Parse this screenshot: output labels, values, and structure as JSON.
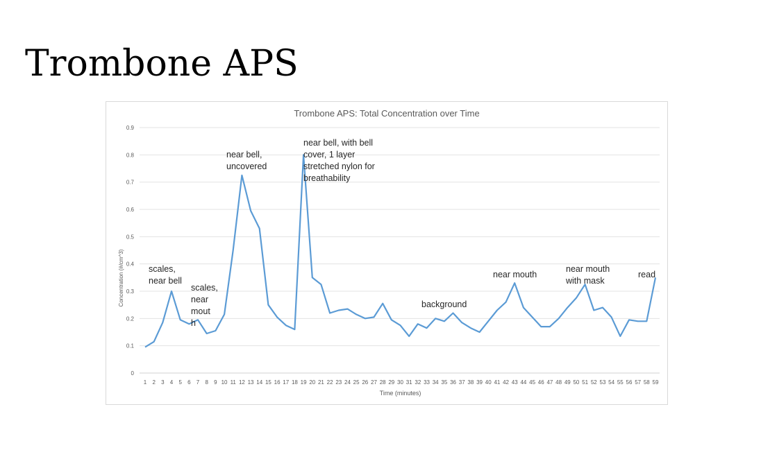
{
  "slide": {
    "title": "Trombone APS"
  },
  "chart_data": {
    "type": "line",
    "title": "Trombone APS: Total Concentration over Time",
    "xlabel": "Time (minutes)",
    "ylabel": "Concentration (#/cm^3)",
    "ylim": [
      0,
      0.9
    ],
    "yticks": [
      "0",
      "0.1",
      "0.2",
      "0.3",
      "0.4",
      "0.5",
      "0.6",
      "0.7",
      "0.8",
      "0.9"
    ],
    "grid": "horizontal",
    "color": "#5b9bd5",
    "categories": [
      "1",
      "2",
      "3",
      "4",
      "5",
      "6",
      "7",
      "8",
      "9",
      "10",
      "11",
      "12",
      "13",
      "14",
      "15",
      "16",
      "17",
      "18",
      "19",
      "20",
      "21",
      "22",
      "23",
      "24",
      "25",
      "26",
      "27",
      "28",
      "29",
      "30",
      "31",
      "32",
      "33",
      "34",
      "35",
      "36",
      "37",
      "38",
      "39",
      "40",
      "41",
      "42",
      "43",
      "44",
      "45",
      "46",
      "47",
      "48",
      "49",
      "50",
      "51",
      "52",
      "53",
      "54",
      "55",
      "56",
      "57",
      "58",
      "59"
    ],
    "series": [
      {
        "values": [
          0.095,
          0.115,
          0.185,
          0.3,
          0.195,
          0.18,
          0.195,
          0.145,
          0.155,
          0.215,
          0.45,
          0.725,
          0.595,
          0.53,
          0.25,
          0.205,
          0.175,
          0.16,
          0.8,
          0.35,
          0.325,
          0.22,
          0.23,
          0.235,
          0.215,
          0.2,
          0.205,
          0.255,
          0.195,
          0.175,
          0.135,
          0.18,
          0.165,
          0.2,
          0.19,
          0.22,
          0.185,
          0.165,
          0.15,
          0.19,
          0.23,
          0.26,
          0.33,
          0.24,
          0.205,
          0.17,
          0.17,
          0.2,
          0.24,
          0.275,
          0.325,
          0.23,
          0.24,
          0.205,
          0.135,
          0.195,
          0.19,
          0.19,
          0.35
        ]
      }
    ],
    "annotations": [
      {
        "lines": [
          "scales,",
          "near bell"
        ]
      },
      {
        "lines": [
          "scales,",
          "near",
          "mout",
          "h"
        ]
      },
      {
        "lines": [
          "near bell,",
          "uncovered"
        ]
      },
      {
        "lines": [
          "near bell, with bell",
          "cover, 1 layer",
          "stretched nylon for",
          "breathability"
        ]
      },
      {
        "lines": [
          "background"
        ]
      },
      {
        "lines": [
          "near mouth"
        ]
      },
      {
        "lines": [
          "near mouth",
          "with mask"
        ]
      },
      {
        "lines": [
          "read"
        ]
      }
    ]
  }
}
